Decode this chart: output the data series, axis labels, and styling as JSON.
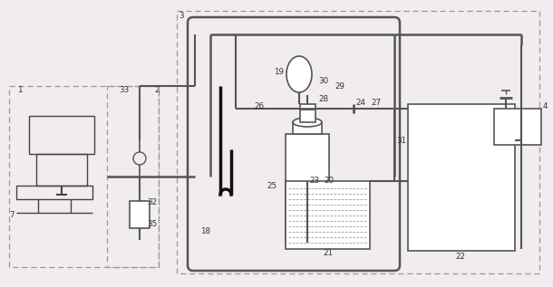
{
  "bg_color": "#f0ecf0",
  "line_color": "#444444",
  "fig_width": 6.1,
  "fig_height": 3.17,
  "dpi": 100
}
